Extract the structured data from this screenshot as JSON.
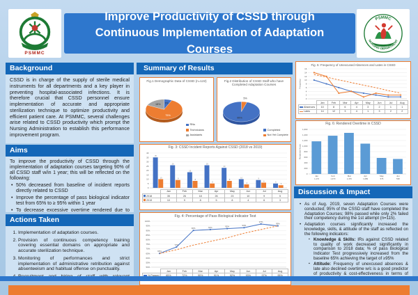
{
  "header": {
    "title": "Improve Productivity of CSSD through Continuous Implementation of Adaptation Courses",
    "left_logo_caption": "PSMMC",
    "right_logo_top": "PSMMC",
    "right_logo_bottom": "NURSING DEPARTMENT"
  },
  "sections": {
    "background": {
      "title": "Background",
      "body": "CSSD is in charge of the supply of sterile medical instruments for all departments and a key player in preventing hospital-associated infections. It is therefore crucial that CSSD personnel ensure implementation of accurate and appropriate sterilization technique to optimize productivity and efficient patient care. At PSMMC, several challenges arise related to CSSD productivity which prompt the Nursing Administration to establish this performance improvement program."
    },
    "aims": {
      "title": "Aims",
      "intro": "To improve the productivity of CSSD through the implementation of adaptation courses targeting 90% of all CSSD staff w/in 1 year; this will be reflected on the following:",
      "bullets": [
        "50% decreased from baseline of incident reports directly related to CSSD",
        "Improve the percentage of pass biological indicator test from 65% to ≥ 95% within 1 year",
        "To decrease excessive overtime rendered due to unexcused absences and tardiness of CSSD staff"
      ]
    },
    "actions": {
      "title": "Actions Taken",
      "items": [
        "Implementation of adaptation courses.",
        "Provision of continuous competency training covering essential domains on appropriate and accurate sterilization technique.",
        "Monitoring of performances and strict implementation of administrative retribution against absenteeism and habitual offense on punctuality.",
        "Recruitment and hiring of staff with relevant experience and are certified by the SCFHS."
      ]
    },
    "results": {
      "title": "Summary of Results"
    },
    "discussion": {
      "title": "Discussion & Impact",
      "bullet1": "As of Aug. 2019, seven Adaptation Courses were conducted; 95% of the CSSD staff have completed the Adaptation Courses; 98% passed while only 2% failed their competency during the 1st attempt (n=115).",
      "bullet2": "Adaptation courses significantly increased the knowledge, skills, & attitude of the staff as reflected on the following indicators:",
      "sub_bullets": [
        {
          "label": "Knowledge & Skills:",
          "text": "IRs against CSSD related to quality of work decreased significantly in comparison to 2018 data; % of pass Biological Indicator Test progressively increased from the baseline 65% achieving the target of ≥95%"
        },
        {
          "label": "Attitude:",
          "text": "Frequency of unexcused absences & late also declined overtime w/c is a good predictor of productivity & cost-effectiveness in terms of less Overtime."
        }
      ]
    }
  },
  "chart_data": [
    {
      "id": "fig1",
      "type": "pie",
      "title": "Fig.1 Demographic Data of CSSD (n=122)",
      "slices": [
        {
          "label": "RNs",
          "value": 7,
          "color": "#4472c4"
        },
        {
          "label": "Technicians",
          "value": 75,
          "color": "#ed7d31",
          "text_color": "#ffffff"
        },
        {
          "label": "Assistants",
          "value": 18,
          "color": "#a5a5a5"
        }
      ]
    },
    {
      "id": "fig2",
      "type": "pie",
      "title": "Fig.2 Distribution of CSSD Staff who have Completed Adaptation Courses",
      "slices": [
        {
          "label": "Not Yet Complete",
          "value": 5,
          "color": "#ed7d31",
          "label_out": true
        },
        {
          "label": "Completed",
          "value": 95,
          "color": "#4472c4"
        }
      ],
      "legend": [
        {
          "label": "Completed",
          "color": "#4472c4"
        },
        {
          "label": "Not Yet Complete",
          "color": "#ed7d31"
        }
      ]
    },
    {
      "id": "fig3",
      "type": "bar",
      "title": "Fig. 3: CSSD Incident Reports Against CSSD (2018 vs 2019)",
      "categories": [
        "Jan",
        "Feb",
        "Mar",
        "Apr",
        "May",
        "Jun",
        "Jul",
        "Aug"
      ],
      "series": [
        {
          "name": "2018",
          "color": "#4472c4",
          "values": [
            35,
            26,
            18,
            26,
            23,
            10,
            9,
            5
          ],
          "in_table": true
        },
        {
          "name": "2019",
          "color": "#ed7d31",
          "values": [
            10,
            9,
            8,
            5,
            8,
            4,
            6,
            3
          ],
          "in_table": true
        }
      ],
      "ylim": [
        0,
        40
      ],
      "ystep": 5,
      "bar_labels": true,
      "table": true
    },
    {
      "id": "fig4",
      "type": "line",
      "title": "Fig. 4: Percentage of Pass Biological Indicator Test",
      "categories": [
        "Jan",
        "Feb",
        "Mar",
        "Apr",
        "May",
        "Jun",
        "Jul",
        "Aug"
      ],
      "series": [
        {
          "name": "% Passed",
          "color": "#4472c4",
          "values": [
            65,
            72,
            90,
            91,
            92,
            93,
            97,
            95
          ],
          "marker": true,
          "point_labels": true,
          "in_table": true
        },
        {
          "name": "Target",
          "color": "#ed7d31",
          "values": [
            65,
            69,
            74,
            78,
            82,
            87,
            91,
            95
          ],
          "dash": true
        }
      ],
      "ylim": [
        50,
        100
      ],
      "ystep": 5,
      "ytick_suffix": "%",
      "value_suffix": "%",
      "table": true
    },
    {
      "id": "fig5",
      "type": "line",
      "title": "Fig. 5: Frequency of Unexcused Absences and Lates in CSSD",
      "ylabel": "Frequency",
      "categories": [
        "Jan",
        "Feb",
        "Mar",
        "Apr",
        "May",
        "Jun",
        "Jul",
        "Aug"
      ],
      "series": [
        {
          "name": "Absences",
          "color": "#4472c4",
          "values": [
            10,
            8,
            6,
            4,
            3,
            2,
            1,
            1
          ],
          "marker": true,
          "in_table": true
        },
        {
          "name": "Lates",
          "color": "#ed7d31",
          "values": [
            14,
            12,
            3,
            4,
            1,
            3,
            2,
            2
          ],
          "marker": true,
          "in_table": true
        },
        {
          "name": "Trend",
          "color": "#ed7d31",
          "values": [
            13,
            11.6,
            10.1,
            8.7,
            7.3,
            5.9,
            4.4,
            3
          ],
          "dash": true
        }
      ],
      "ylim": [
        0,
        16
      ],
      "ystep": 2,
      "table": true
    },
    {
      "id": "fig6",
      "type": "bar",
      "title": "Fig. 6: Rendered Overtime in CSSD",
      "ylabel": "Rendered Hours",
      "categories": [
        "Jan",
        "Feb",
        "Mar",
        "Apr",
        "May",
        "Jun"
      ],
      "series": [
        {
          "name": "Overtime Hours",
          "color": "#5b9bd5",
          "values": [
            1172,
            1373,
            1476,
            1089,
            575,
            538
          ]
        }
      ],
      "value_labels": [
        "1,172",
        "1,373",
        "1,476",
        "1,089",
        "575",
        "538"
      ],
      "ylim": [
        0,
        1600
      ],
      "ystep": 200,
      "show_x": true
    }
  ]
}
